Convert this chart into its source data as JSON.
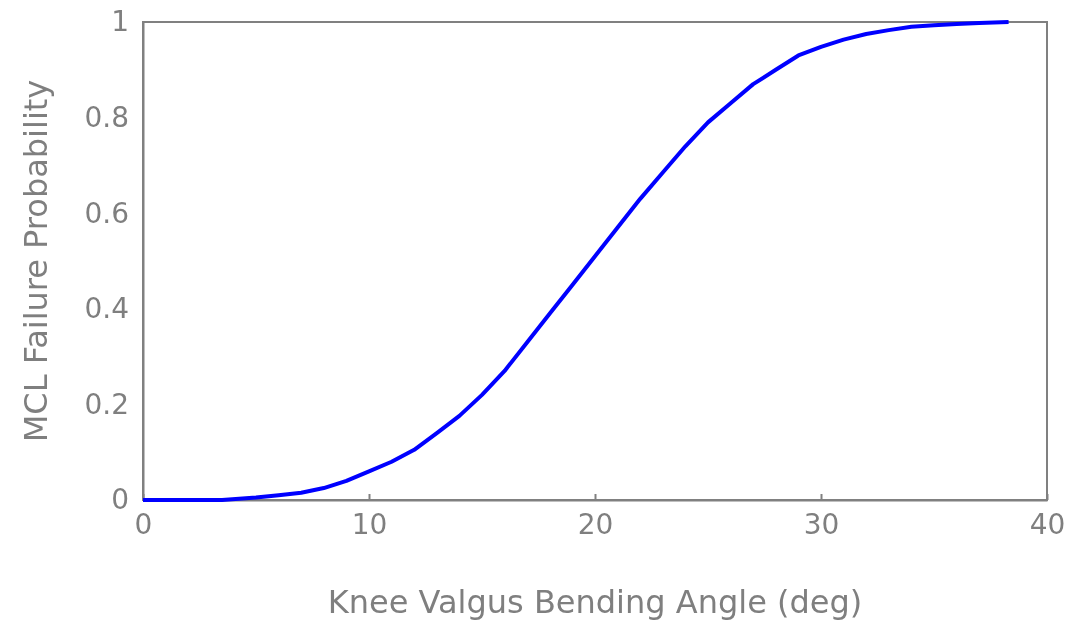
{
  "chart_data": {
    "type": "line",
    "xlabel": "Knee Valgus Bending Angle (deg)",
    "ylabel": "MCL Failure Probability",
    "xlim": [
      0,
      40
    ],
    "xticks": [
      0,
      10,
      20,
      30,
      40
    ],
    "ylim": [
      0,
      1
    ],
    "yticks": [
      0,
      0.2,
      0.4,
      0.6,
      0.8,
      1
    ],
    "grid": false,
    "marker": "none",
    "line_style": "solid",
    "series": [
      {
        "color": "#0000ff",
        "x": [
          0,
          2,
          3.5,
          5,
          6,
          7,
          8,
          9,
          10,
          11,
          12,
          13,
          14,
          15,
          16,
          17,
          18,
          19,
          20,
          21,
          22,
          23,
          24,
          25,
          26,
          27,
          28,
          29,
          30,
          31,
          32,
          33,
          34,
          35,
          36,
          37,
          38.3
        ],
        "values": [
          0,
          0,
          0,
          0.005,
          0.01,
          0.015,
          0.025,
          0.04,
          0.06,
          0.08,
          0.105,
          0.14,
          0.176,
          0.22,
          0.27,
          0.33,
          0.39,
          0.45,
          0.51,
          0.57,
          0.63,
          0.685,
          0.74,
          0.79,
          0.83,
          0.87,
          0.9,
          0.93,
          0.948,
          0.963,
          0.975,
          0.983,
          0.99,
          0.993,
          0.996,
          0.998,
          1
        ]
      }
    ]
  }
}
